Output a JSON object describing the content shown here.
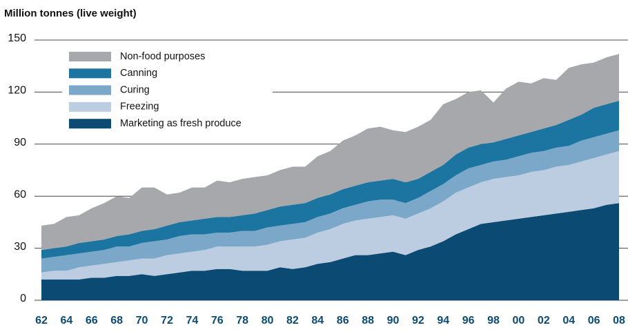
{
  "chart_data": {
    "type": "stacked_area",
    "title": "Million tonnes (live weight)",
    "categories": [
      "62",
      null,
      "64",
      null,
      "66",
      null,
      "68",
      null,
      "70",
      null,
      "72",
      null,
      "74",
      null,
      "76",
      null,
      "78",
      null,
      "80",
      null,
      "82",
      null,
      "84",
      null,
      "86",
      null,
      "88",
      null,
      "90",
      null,
      "92",
      null,
      "94",
      null,
      "96",
      null,
      "98",
      null,
      "00",
      null,
      "02",
      null,
      "04",
      null,
      "06",
      null,
      "08"
    ],
    "series": [
      {
        "name": "Marketing as fresh produce",
        "color": "#0b4a72",
        "values": [
          12,
          12,
          12,
          12,
          13,
          13,
          14,
          14,
          15,
          14,
          15,
          16,
          17,
          17,
          18,
          18,
          17,
          17,
          17,
          19,
          18,
          19,
          21,
          22,
          24,
          26,
          26,
          27,
          28,
          26,
          29,
          31,
          34,
          38,
          41,
          44,
          45,
          46,
          47,
          48,
          49,
          50,
          51,
          52,
          53,
          55,
          56
        ]
      },
      {
        "name": "Freezing",
        "color": "#bccde2",
        "values": [
          4,
          5,
          5,
          7,
          7,
          8,
          8,
          9,
          9,
          10,
          11,
          11,
          11,
          12,
          13,
          13,
          14,
          14,
          15,
          15,
          17,
          17,
          18,
          19,
          20,
          20,
          21,
          21,
          21,
          21,
          21,
          22,
          23,
          24,
          24,
          24,
          25,
          25,
          25,
          26,
          26,
          27,
          27,
          28,
          29,
          29,
          30
        ]
      },
      {
        "name": "Curing",
        "color": "#7ba7c9",
        "values": [
          8,
          8,
          9,
          8,
          8,
          8,
          9,
          8,
          9,
          10,
          9,
          10,
          10,
          9,
          8,
          8,
          9,
          9,
          10,
          9,
          9,
          9,
          9,
          9,
          9,
          9,
          10,
          10,
          9,
          9,
          9,
          10,
          10,
          10,
          11,
          10,
          10,
          10,
          11,
          11,
          11,
          11,
          11,
          12,
          12,
          12,
          12
        ]
      },
      {
        "name": "Canning",
        "color": "#1c75a0",
        "values": [
          5,
          5,
          5,
          6,
          6,
          6,
          6,
          7,
          7,
          7,
          8,
          8,
          8,
          9,
          9,
          9,
          9,
          10,
          10,
          11,
          11,
          11,
          11,
          11,
          11,
          11,
          11,
          11,
          12,
          12,
          11,
          11,
          11,
          12,
          12,
          12,
          11,
          12,
          12,
          12,
          13,
          13,
          15,
          15,
          17,
          17,
          17
        ]
      },
      {
        "name": "Non-food purposes",
        "color": "#a6a8ab",
        "values": [
          14,
          14,
          17,
          16,
          19,
          21,
          23,
          21,
          25,
          24,
          18,
          17,
          19,
          18,
          21,
          20,
          21,
          21,
          20,
          21,
          22,
          21,
          24,
          25,
          28,
          29,
          31,
          31,
          28,
          29,
          30,
          30,
          35,
          32,
          32,
          31,
          23,
          29,
          31,
          28,
          29,
          26,
          30,
          29,
          26,
          27,
          27
        ]
      }
    ],
    "ylim": [
      0,
      150
    ],
    "yticks": [
      0,
      30,
      60,
      90,
      120,
      150
    ],
    "grid": true,
    "legend": "upper left"
  }
}
